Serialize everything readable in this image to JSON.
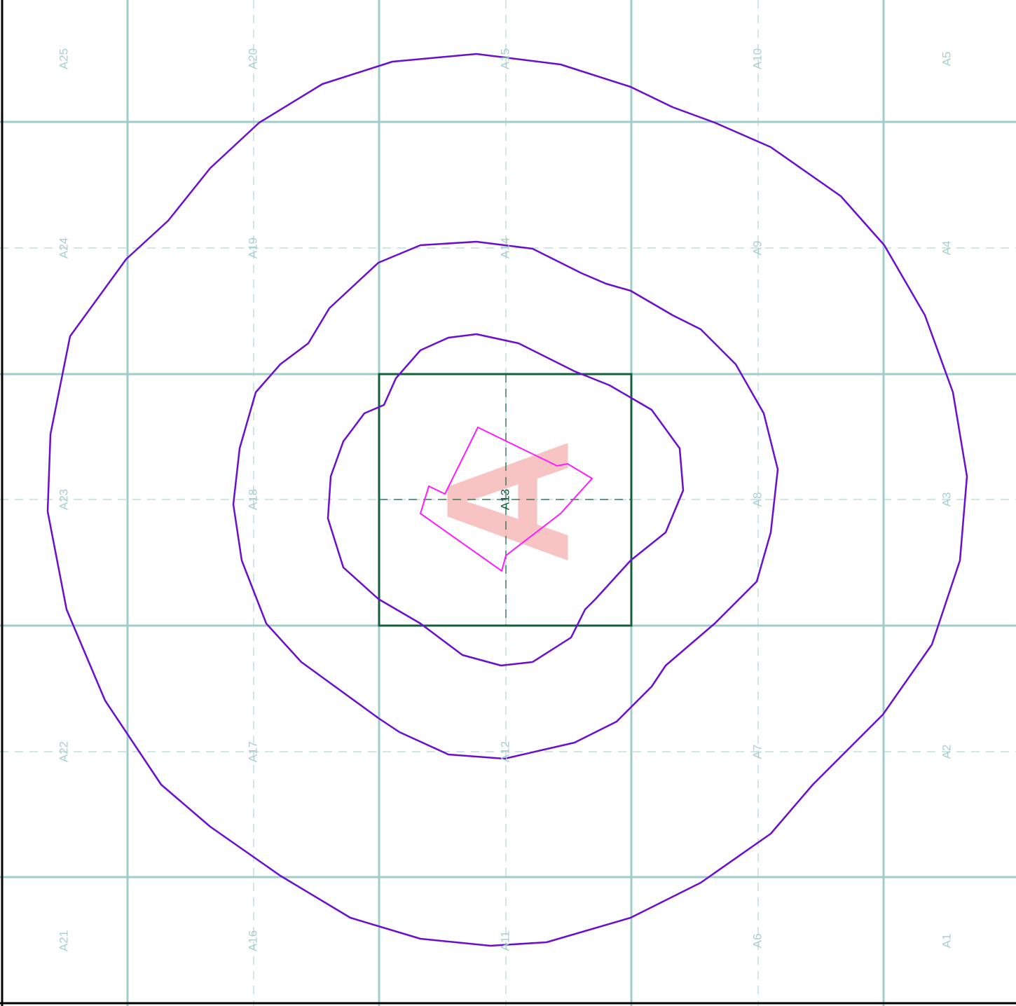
{
  "cells": [
    "A1",
    "A2",
    "A3",
    "A4",
    "A5",
    "A6",
    "A7",
    "A8",
    "A9",
    "A10",
    "A11",
    "A12",
    "A13",
    "A14",
    "A15",
    "A16",
    "A17",
    "A18",
    "A19",
    "A20",
    "A21",
    "A22",
    "A23",
    "A24",
    "A25"
  ],
  "marker_letter": "A"
}
